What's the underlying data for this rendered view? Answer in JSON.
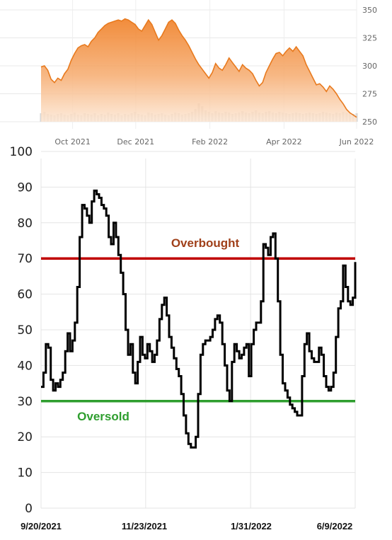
{
  "chart_data": [
    {
      "type": "area",
      "title": "",
      "xlabel": "",
      "ylabel": "",
      "x_tick_labels": [
        "Oct 2021",
        "Dec 2021",
        "Feb 2022",
        "Apr 2022",
        "Jun 2022"
      ],
      "y_ticks": [
        250,
        275,
        300,
        325,
        350
      ],
      "ylim": [
        250,
        350
      ],
      "grid": true,
      "colors": {
        "line": "#e87a1e",
        "fill_top": "#f0822a",
        "fill_bottom": "#fde3cc",
        "volume": "#d9d9d9"
      },
      "series": [
        {
          "values": [
            299,
            300,
            296,
            288,
            285,
            289,
            287,
            293,
            297,
            305,
            311,
            316,
            318,
            319,
            317,
            322,
            325,
            330,
            333,
            336,
            338,
            339,
            340,
            341,
            340,
            342,
            341,
            339,
            337,
            333,
            331,
            336,
            341,
            337,
            330,
            323,
            327,
            333,
            339,
            341,
            338,
            332,
            327,
            323,
            318,
            312,
            306,
            301,
            297,
            293,
            289,
            294,
            302,
            298,
            296,
            301,
            307,
            303,
            299,
            295,
            301,
            298,
            296,
            293,
            287,
            282,
            285,
            294,
            300,
            306,
            311,
            312,
            309,
            313,
            316,
            313,
            317,
            313,
            309,
            301,
            295,
            289,
            283,
            284,
            281,
            277,
            282,
            279,
            275,
            270,
            266,
            261,
            258,
            256,
            254
          ]
        }
      ],
      "volume": [
        12,
        14,
        11,
        10,
        9,
        11,
        12,
        10,
        9,
        11,
        13,
        10,
        9,
        12,
        11,
        10,
        12,
        9,
        11,
        10,
        13,
        11,
        10,
        12,
        9,
        11,
        10,
        12,
        14,
        11,
        10,
        9,
        13,
        12,
        10,
        11,
        12,
        10,
        9,
        11,
        13,
        12,
        10,
        11,
        12,
        14,
        18,
        26,
        22,
        16,
        14,
        12,
        15,
        13,
        12,
        14,
        13,
        11,
        12,
        13,
        15,
        13,
        12,
        14,
        16,
        13,
        12,
        14,
        15,
        13,
        12,
        14,
        13,
        12,
        11,
        12,
        13,
        12,
        11,
        12,
        13,
        12,
        11,
        12,
        14,
        13,
        12,
        11,
        13,
        12,
        14,
        13,
        12,
        11,
        12
      ]
    },
    {
      "type": "line",
      "title": "",
      "xlabel": "",
      "ylabel": "",
      "x_tick_labels": [
        "9/20/2021",
        "11/23/2021",
        "1/31/2022",
        "6/9/2022"
      ],
      "y_ticks": [
        0,
        10,
        20,
        30,
        40,
        50,
        60,
        70,
        80,
        90,
        100
      ],
      "ylim": [
        0,
        100
      ],
      "grid": true,
      "overbought": {
        "value": 70,
        "label": "Overbought",
        "color": "#c00000",
        "label_color": "#a0401a"
      },
      "oversold": {
        "value": 30,
        "label": "Oversold",
        "color": "#2e9e2e",
        "label_color": "#2e9e2e"
      },
      "line_color": "#000000",
      "series": [
        {
          "values": [
            34,
            38,
            46,
            45,
            36,
            33,
            35,
            34,
            36,
            38,
            44,
            49,
            44,
            47,
            52,
            62,
            76,
            85,
            84,
            82,
            80,
            86,
            89,
            88,
            87,
            85,
            84,
            82,
            76,
            74,
            80,
            76,
            71,
            66,
            60,
            50,
            43,
            46,
            38,
            35,
            41,
            48,
            43,
            42,
            46,
            44,
            41,
            43,
            47,
            53,
            57,
            59,
            54,
            48,
            45,
            42,
            39,
            37,
            32,
            26,
            21,
            18,
            17,
            17,
            20,
            32,
            43,
            46,
            47,
            47,
            48,
            50,
            53,
            54,
            52,
            46,
            40,
            33,
            30,
            41,
            46,
            44,
            42,
            43,
            45,
            46,
            37,
            46,
            50,
            52,
            52,
            58,
            74,
            73,
            71,
            76,
            77,
            70,
            58,
            43,
            35,
            33,
            31,
            29,
            28,
            27,
            26,
            26,
            37,
            46,
            49,
            44,
            42,
            41,
            41,
            45,
            43,
            37,
            34,
            33,
            34,
            38,
            48,
            56,
            58,
            68,
            62,
            58,
            57,
            59,
            69
          ]
        }
      ]
    }
  ]
}
